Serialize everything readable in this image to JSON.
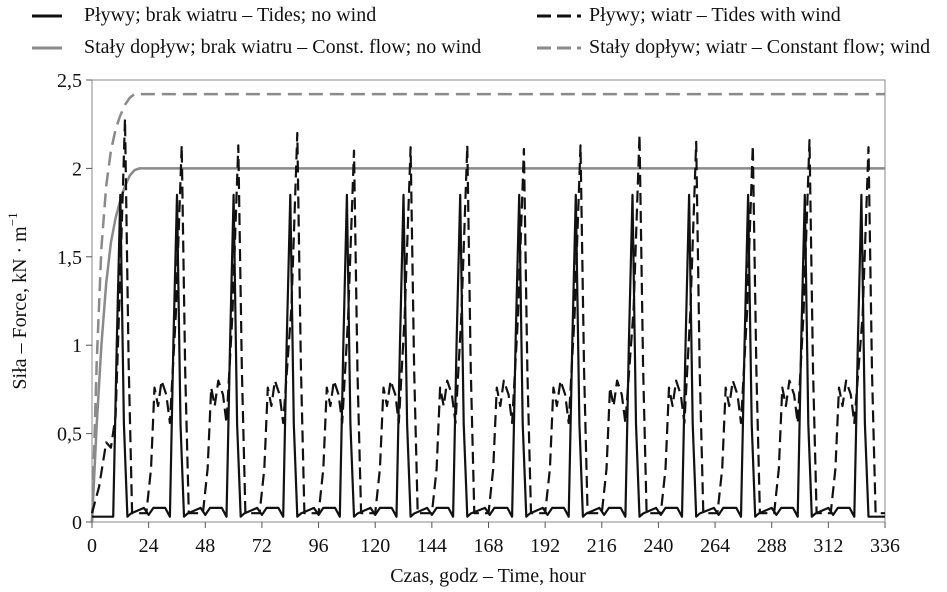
{
  "chart_data": {
    "type": "line",
    "xlabel": "Czas, godz – Time, hour",
    "ylabel": "Siła – Force, kN · m",
    "ylabel_sup": "−1",
    "xlim": [
      0,
      336
    ],
    "ylim": [
      0,
      2.5
    ],
    "xticks": [
      0,
      24,
      48,
      72,
      96,
      120,
      144,
      168,
      192,
      216,
      240,
      264,
      288,
      312,
      336
    ],
    "xtick_labels": [
      "0",
      "24",
      "48",
      "72",
      "96",
      "120",
      "144",
      "168",
      "192",
      "216",
      "240",
      "264",
      "288",
      "312",
      "336"
    ],
    "yticks": [
      0,
      0.5,
      1,
      1.5,
      2,
      2.5
    ],
    "ytick_labels": [
      "0",
      "0,5",
      "1",
      "1,5",
      "2",
      "2,5"
    ],
    "grid": false,
    "legend_position": "top",
    "tidal_period_hours": 24.2,
    "series": [
      {
        "name": "Pływy; brak wiatru – Tides; no wind",
        "color": "#111111",
        "dash": "solid",
        "peak_x": [
          12,
          36,
          60,
          84,
          108,
          132,
          156,
          181,
          205,
          229,
          253,
          278,
          302,
          326
        ],
        "peak_y": [
          1.85,
          1.85,
          1.85,
          1.85,
          1.85,
          1.85,
          1.85,
          1.85,
          1.85,
          1.85,
          1.85,
          1.85,
          1.85,
          1.85
        ],
        "trough_y": 0.03,
        "plateau_y": 0.08
      },
      {
        "name": "Pływy; wiatr – Tides with wind",
        "color": "#111111",
        "dash": "dashed",
        "peak_x": [
          14,
          38,
          62,
          87,
          111,
          135,
          159,
          183,
          207,
          232,
          256,
          280,
          304,
          329
        ],
        "peak_y": [
          2.28,
          2.13,
          2.13,
          2.2,
          2.1,
          2.12,
          2.13,
          2.11,
          2.13,
          2.19,
          2.15,
          2.13,
          2.16,
          2.12
        ],
        "trough_y": 0.05,
        "shoulder_y": 0.8
      },
      {
        "name": "Stały dopływ; brak wiatru – Const. flow; no wind",
        "color": "#8a8a8a",
        "dash": "solid",
        "steady_y": 2.0,
        "x": [
          0,
          2,
          4,
          6,
          8,
          10,
          12,
          14,
          16,
          18,
          20,
          24,
          336
        ],
        "y": [
          0,
          0.55,
          1.0,
          1.35,
          1.58,
          1.72,
          1.82,
          1.9,
          1.96,
          1.99,
          2.0,
          2.0,
          2.0
        ]
      },
      {
        "name": "Stały dopływ; wiatr – Constant flow; wind",
        "color": "#8a8a8a",
        "dash": "dashed",
        "steady_y": 2.42,
        "x": [
          0,
          2,
          4,
          6,
          8,
          10,
          12,
          14,
          16,
          18,
          24,
          336
        ],
        "y": [
          0,
          0.9,
          1.55,
          1.9,
          2.1,
          2.22,
          2.3,
          2.36,
          2.4,
          2.42,
          2.42,
          2.42
        ]
      }
    ]
  }
}
